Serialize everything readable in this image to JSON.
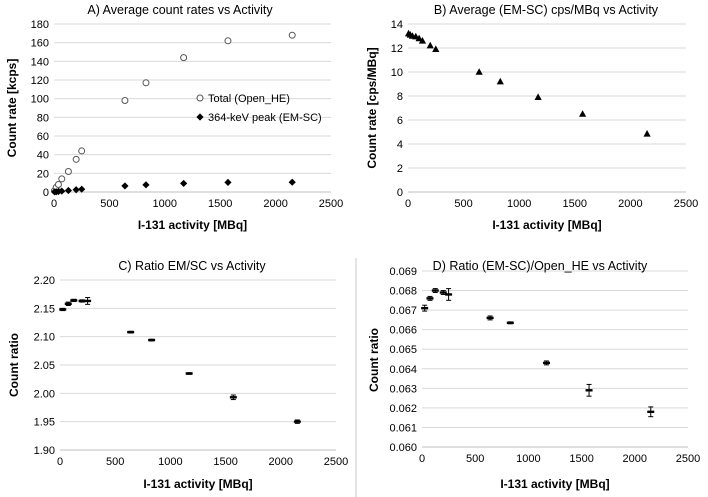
{
  "chart_data": [
    {
      "id": "A",
      "type": "scatter",
      "title": "A)  Average count rates vs Activity",
      "xlabel": "I-131 activity [MBq]",
      "ylabel": "Count rate [kcps]",
      "xlim": [
        0,
        2500
      ],
      "ylim": [
        0,
        180
      ],
      "xticks": [
        0,
        500,
        1000,
        1500,
        2000,
        2500
      ],
      "yticks": [
        0,
        20,
        40,
        60,
        80,
        100,
        120,
        140,
        160,
        180
      ],
      "grid": true,
      "legend_position": "middle-right",
      "series": [
        {
          "name": "Total (Open_HE)",
          "marker": "open-circle",
          "x": [
            5,
            20,
            40,
            70,
            130,
            200,
            250,
            640,
            830,
            1170,
            1570,
            2150
          ],
          "y": [
            1.5,
            5,
            8,
            14,
            22,
            35,
            44,
            98,
            117,
            144,
            162,
            168
          ]
        },
        {
          "name": "364-keV peak (EM-SC)",
          "marker": "diamond",
          "x": [
            5,
            20,
            40,
            70,
            130,
            200,
            250,
            640,
            830,
            1170,
            1570,
            2150
          ],
          "y": [
            0.1,
            0.3,
            0.5,
            0.9,
            1.6,
            2.4,
            3.0,
            6.5,
            7.7,
            9.2,
            10.3,
            10.5
          ]
        }
      ]
    },
    {
      "id": "B",
      "type": "scatter",
      "title": "B) Average (EM-SC) cps/MBq vs Activity",
      "xlabel": "I-131 activity [MBq]",
      "ylabel": "Count rate [cps/MBq]",
      "xlim": [
        0,
        2500
      ],
      "ylim": [
        0,
        14
      ],
      "xticks": [
        0,
        500,
        1000,
        1500,
        2000,
        2500
      ],
      "yticks": [
        0,
        2,
        4,
        6,
        8,
        10,
        12,
        14
      ],
      "grid": true,
      "series": [
        {
          "name": "(EM-SC) cps/MBq",
          "marker": "triangle",
          "x": [
            5,
            20,
            40,
            70,
            100,
            130,
            200,
            250,
            640,
            830,
            1170,
            1570,
            2150
          ],
          "y": [
            13.2,
            13.1,
            13.0,
            12.95,
            12.8,
            12.6,
            12.2,
            11.9,
            10.0,
            9.2,
            7.9,
            6.5,
            4.85
          ]
        }
      ]
    },
    {
      "id": "C",
      "type": "scatter",
      "title": "C)  Ratio EM/SC vs Activity",
      "xlabel": "I-131 activity [MBq]",
      "ylabel": "Count ratio",
      "xlim": [
        0,
        2500
      ],
      "ylim": [
        1.9,
        2.2
      ],
      "xticks": [
        0,
        500,
        1000,
        1500,
        2000,
        2500
      ],
      "yticks": [
        1.9,
        1.95,
        2.0,
        2.05,
        2.1,
        2.15,
        2.2
      ],
      "ytick_labels": [
        "1.90",
        "1.95",
        "2.00",
        "2.05",
        "2.10",
        "2.15",
        "2.20"
      ],
      "grid": true,
      "series": [
        {
          "name": "EM/SC ratio",
          "marker": "dash-errorbar",
          "x": [
            25,
            75,
            125,
            200,
            250,
            640,
            830,
            1170,
            1570,
            2150
          ],
          "y": [
            2.148,
            2.158,
            2.164,
            2.163,
            2.163,
            2.108,
            2.094,
            2.035,
            1.993,
            1.95
          ],
          "err": [
            0.002,
            0.003,
            0.002,
            0.002,
            0.006,
            0.0015,
            0.0015,
            0.0015,
            0.004,
            0.003
          ]
        }
      ]
    },
    {
      "id": "D",
      "type": "scatter",
      "title": "D)  Ratio (EM-SC)/Open_HE vs Activity",
      "xlabel": "I-131 activity [MBq]",
      "ylabel": "Count ratio",
      "xlim": [
        0,
        2500
      ],
      "ylim": [
        0.06,
        0.069
      ],
      "xticks": [
        0,
        500,
        1000,
        1500,
        2000,
        2500
      ],
      "yticks": [
        0.06,
        0.061,
        0.062,
        0.063,
        0.064,
        0.065,
        0.066,
        0.067,
        0.068,
        0.069
      ],
      "ytick_labels": [
        "0.060",
        "0.061",
        "0.062",
        "0.063",
        "0.064",
        "0.065",
        "0.066",
        "0.067",
        "0.068",
        "0.069"
      ],
      "grid": true,
      "series": [
        {
          "name": "(EM-SC)/Open_HE ratio",
          "marker": "dash-errorbar",
          "x": [
            25,
            75,
            125,
            200,
            250,
            640,
            830,
            1170,
            1570,
            2150
          ],
          "y": [
            0.0671,
            0.0676,
            0.068,
            0.0679,
            0.0678,
            0.0666,
            0.06635,
            0.0643,
            0.0629,
            0.0618
          ],
          "err": [
            0.00015,
            0.0001,
            0.0001,
            0.0001,
            0.0003,
            0.0001,
            5e-05,
            0.0001,
            0.0003,
            0.00025
          ]
        }
      ]
    }
  ]
}
